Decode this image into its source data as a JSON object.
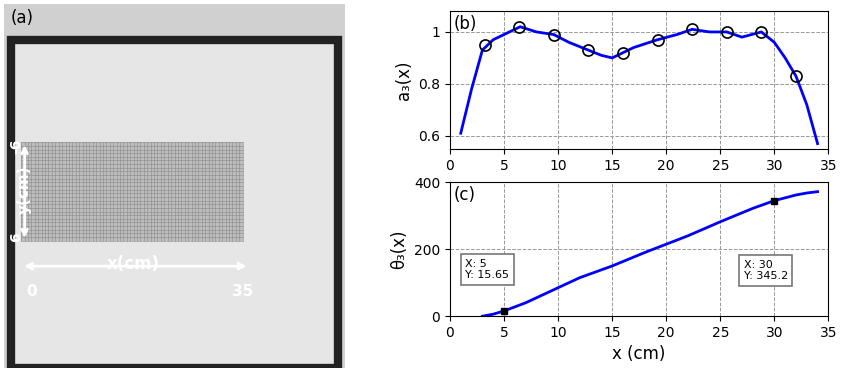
{
  "panel_a": {
    "title": "(a)",
    "x_axis_label": "x(cm)",
    "x_ends": [
      "0",
      "35"
    ],
    "y_axis_label": "y(cm)",
    "y_ends": [
      "6",
      "-6"
    ]
  },
  "chart_data": [
    {
      "type": "line",
      "title": "(b)",
      "y_label": "a₃(x)",
      "xlim": [
        0,
        35
      ],
      "xticks": [
        0,
        5,
        10,
        15,
        20,
        25,
        30,
        35
      ],
      "ylim": [
        0.55,
        1.08
      ],
      "yticks": [
        0.6,
        0.8,
        1
      ],
      "grid": true,
      "series": [
        {
          "type": "line",
          "color": "#0000ff",
          "line_style": "solid",
          "x": [
            1,
            2,
            3,
            4,
            5,
            6,
            6.5,
            8,
            9.6,
            11,
            12.8,
            14,
            15,
            16,
            17,
            19.2,
            21,
            22.4,
            24,
            25.6,
            27,
            28.8,
            30,
            31,
            32,
            33,
            34
          ],
          "values": [
            0.61,
            0.78,
            0.93,
            0.97,
            0.99,
            1.01,
            1.02,
            1.0,
            0.99,
            0.96,
            0.93,
            0.91,
            0.9,
            0.92,
            0.94,
            0.97,
            0.99,
            1.01,
            1.0,
            1.0,
            0.98,
            1.0,
            0.96,
            0.9,
            0.83,
            0.72,
            0.57
          ]
        },
        {
          "type": "scatter",
          "color": "#000000",
          "marker": "circle",
          "x": [
            3.2,
            6.4,
            9.6,
            12.8,
            16,
            19.2,
            22.4,
            25.6,
            28.8,
            32
          ],
          "values": [
            0.95,
            1.02,
            0.99,
            0.93,
            0.92,
            0.97,
            1.01,
            1.0,
            1.0,
            0.83
          ]
        }
      ]
    },
    {
      "type": "line",
      "title": "(c)",
      "x_label": "x (cm)",
      "y_label": "θ₃(x)",
      "xlim": [
        0,
        35
      ],
      "xticks": [
        0,
        5,
        10,
        15,
        20,
        25,
        30,
        35
      ],
      "ylim": [
        0,
        400
      ],
      "yticks": [
        0,
        200,
        400
      ],
      "grid": true,
      "series": [
        {
          "type": "line",
          "color": "#0000ff",
          "line_style": "solid",
          "x": [
            3,
            4,
            5,
            7,
            10,
            12,
            15,
            18,
            20,
            22,
            25,
            28,
            30,
            32,
            33,
            34
          ],
          "values": [
            0,
            6,
            15.65,
            40,
            85,
            115,
            150,
            190,
            215,
            240,
            282,
            322,
            345.2,
            362,
            368,
            372
          ]
        }
      ],
      "annotations": [
        {
          "x": 5,
          "y": 15.65,
          "label": "X: 5\nY: 15.65"
        },
        {
          "x": 30,
          "y": 345.2,
          "label": "X: 30\nY: 345.2"
        }
      ]
    }
  ]
}
